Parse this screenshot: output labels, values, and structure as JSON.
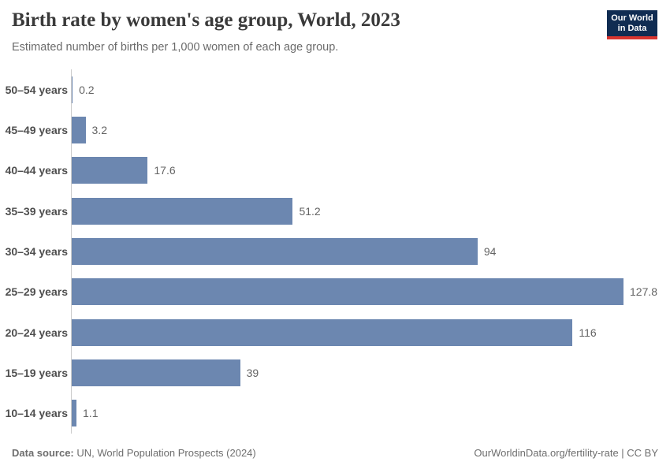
{
  "header": {
    "title": "Birth rate by women's age group, World, 2023",
    "subtitle": "Estimated number of births per 1,000 women of each age group.",
    "logo": {
      "line1": "Our World",
      "line2": "in Data",
      "bg_color": "#102c52",
      "accent_color": "#d8352f"
    }
  },
  "chart_data": {
    "type": "bar",
    "orientation": "horizontal",
    "title": "Birth rate by women's age group, World, 2023",
    "xlabel": "",
    "ylabel": "",
    "xlim": [
      0,
      130
    ],
    "grid": false,
    "legend": "none",
    "bar_color": "#6c87b0",
    "axis_color": "#cccccc",
    "categories": [
      "50–54 years",
      "45–49 years",
      "40–44 years",
      "35–39 years",
      "30–34 years",
      "25–29 years",
      "20–24 years",
      "15–19 years",
      "10–14 years"
    ],
    "values": [
      0.2,
      3.2,
      17.6,
      51.2,
      94,
      127.8,
      116,
      39,
      1.1
    ],
    "value_labels": [
      "0.2",
      "3.2",
      "17.6",
      "51.2",
      "94",
      "127.8",
      "116",
      "39",
      "1.1"
    ]
  },
  "footer": {
    "datasource_label": "Data source:",
    "datasource_text": "UN, World Population Prospects (2024)",
    "credit": "OurWorldinData.org/fertility-rate | CC BY"
  }
}
